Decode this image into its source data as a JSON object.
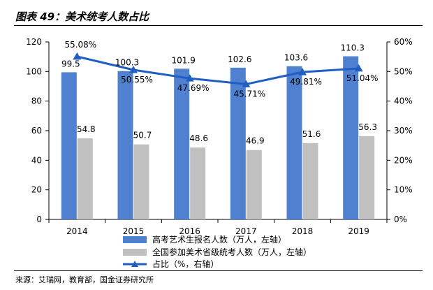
{
  "title": "图表 49：美术统考人数占比",
  "source": "来源：艾瑞网，教育部，国金证券研究所",
  "chart_data": {
    "type": "bar",
    "categories": [
      "2014",
      "2015",
      "2016",
      "2017",
      "2018",
      "2019"
    ],
    "series": [
      {
        "name": "高考艺术生报名人数（万人，左轴）",
        "type": "bar",
        "axis": "left",
        "color": "#4f81d0",
        "values": [
          99.5,
          100.3,
          101.9,
          102.6,
          103.6,
          110.3
        ],
        "labels": [
          "99.5",
          "100.3",
          "101.9",
          "102.6",
          "103.6",
          "110.3"
        ]
      },
      {
        "name": "全国参加美术省级统考人数（万人，左轴）",
        "type": "bar",
        "axis": "left",
        "color": "#c0c0c0",
        "values": [
          54.8,
          50.7,
          48.6,
          46.9,
          51.6,
          56.3
        ],
        "labels": [
          "54.8",
          "50.7",
          "48.6",
          "46.9",
          "51.6",
          "56.3"
        ]
      },
      {
        "name": "占比（%，右轴）",
        "type": "line",
        "axis": "right",
        "color": "#1f5fc4",
        "values": [
          55.08,
          50.55,
          47.69,
          45.71,
          49.81,
          51.04
        ],
        "labels": [
          "55.08%",
          "50.55%",
          "47.69%",
          "45.71%",
          "49.81%",
          "51.04%"
        ]
      }
    ],
    "y_left": {
      "min": 0,
      "max": 120,
      "step": 20,
      "ticks": [
        "0",
        "20",
        "40",
        "60",
        "80",
        "100",
        "120"
      ]
    },
    "y_right": {
      "min": 0,
      "max": 60,
      "step": 10,
      "ticks": [
        "0%",
        "10%",
        "20%",
        "30%",
        "40%",
        "50%",
        "60%"
      ]
    },
    "grid": false,
    "legend": "bottom"
  }
}
